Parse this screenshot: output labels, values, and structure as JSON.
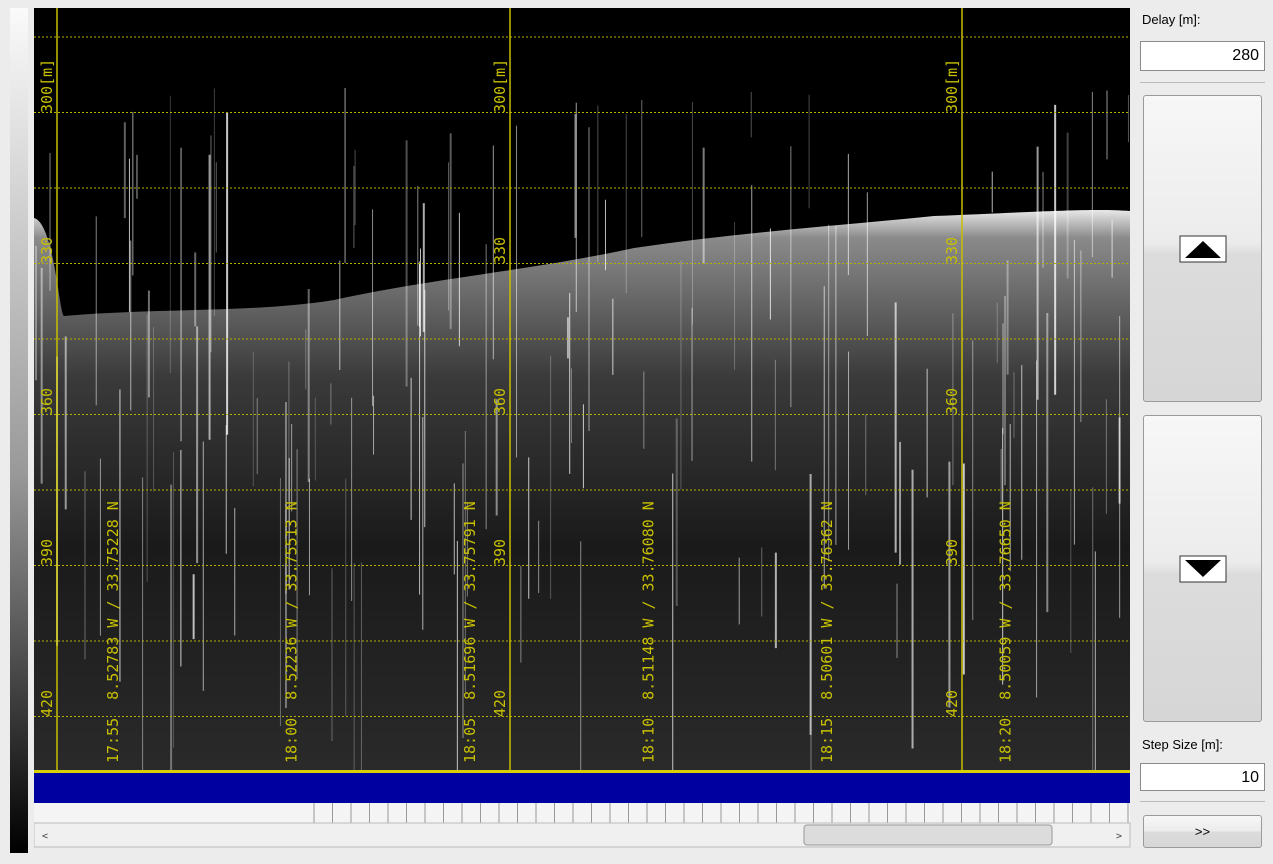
{
  "panel": {
    "delay_label": "Delay [m]:",
    "delay_value": "280",
    "step_label": "Step Size [m]:",
    "step_value": "10",
    "next_button": ">>"
  },
  "depth_labels": [
    "300[m]",
    "330",
    "360",
    "390",
    "420"
  ],
  "markers": [
    {
      "time": "17:55",
      "position": "8.52783 W / 33.75228 N"
    },
    {
      "time": "18:00",
      "position": "8.52236 W / 33.75513 N"
    },
    {
      "time": "18:05",
      "position": "8.51696 W / 33.75791 N"
    },
    {
      "time": "18:10",
      "position": "8.51148 W / 33.76080 N"
    },
    {
      "time": "18:15",
      "position": "8.50601 W / 33.76362 N"
    },
    {
      "time": "18:20",
      "position": "8.50059 W / 33.76650 N"
    }
  ]
}
